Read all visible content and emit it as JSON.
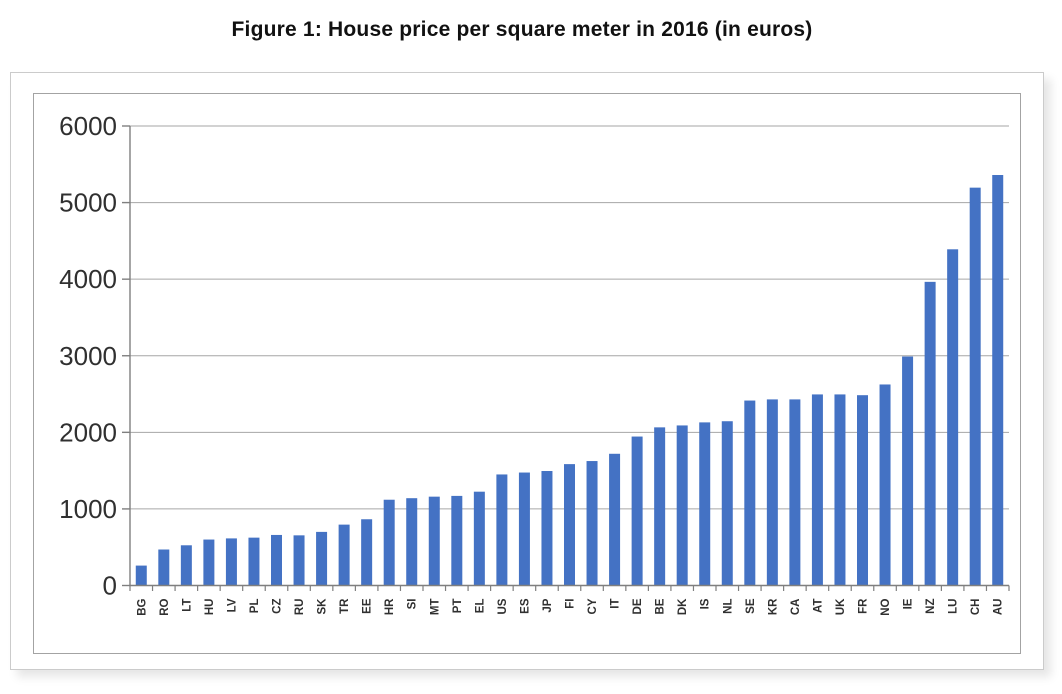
{
  "page": {
    "title": "Figure 1: House price per square meter in 2016 (in euros)"
  },
  "chart_data": {
    "type": "bar",
    "title": "Figure 1: House price per square meter in 2016 (in euros)",
    "categories": [
      "BG",
      "RO",
      "LT",
      "HU",
      "LV",
      "PL",
      "CZ",
      "RU",
      "SK",
      "TR",
      "EE",
      "HR",
      "SI",
      "MT",
      "PT",
      "EL",
      "US",
      "ES",
      "JP",
      "FI",
      "CY",
      "IT",
      "DE",
      "BE",
      "DK",
      "IS",
      "NL",
      "SE",
      "KR",
      "CA",
      "AT",
      "UK",
      "FR",
      "NO",
      "IE",
      "NZ",
      "LU",
      "CH",
      "AU"
    ],
    "values": [
      260,
      470,
      525,
      600,
      615,
      625,
      660,
      655,
      700,
      795,
      865,
      1120,
      1140,
      1160,
      1170,
      1225,
      1450,
      1475,
      1495,
      1585,
      1625,
      1720,
      1945,
      2065,
      2090,
      2130,
      2145,
      2415,
      2430,
      2430,
      2495,
      2495,
      2485,
      2625,
      2990,
      3965,
      4390,
      5195,
      5360
    ],
    "xlabel": "",
    "ylabel": "",
    "ylim": [
      0,
      6000
    ],
    "y_ticks": [
      0,
      1000,
      2000,
      3000,
      4000,
      5000,
      6000
    ],
    "grid": true,
    "legend_position": "none",
    "colors": {
      "bar": "#4472C4",
      "gridline": "#a6a6a6",
      "axis": "#7f7f7f",
      "tick_label": "#303030",
      "title": "#111111"
    }
  }
}
